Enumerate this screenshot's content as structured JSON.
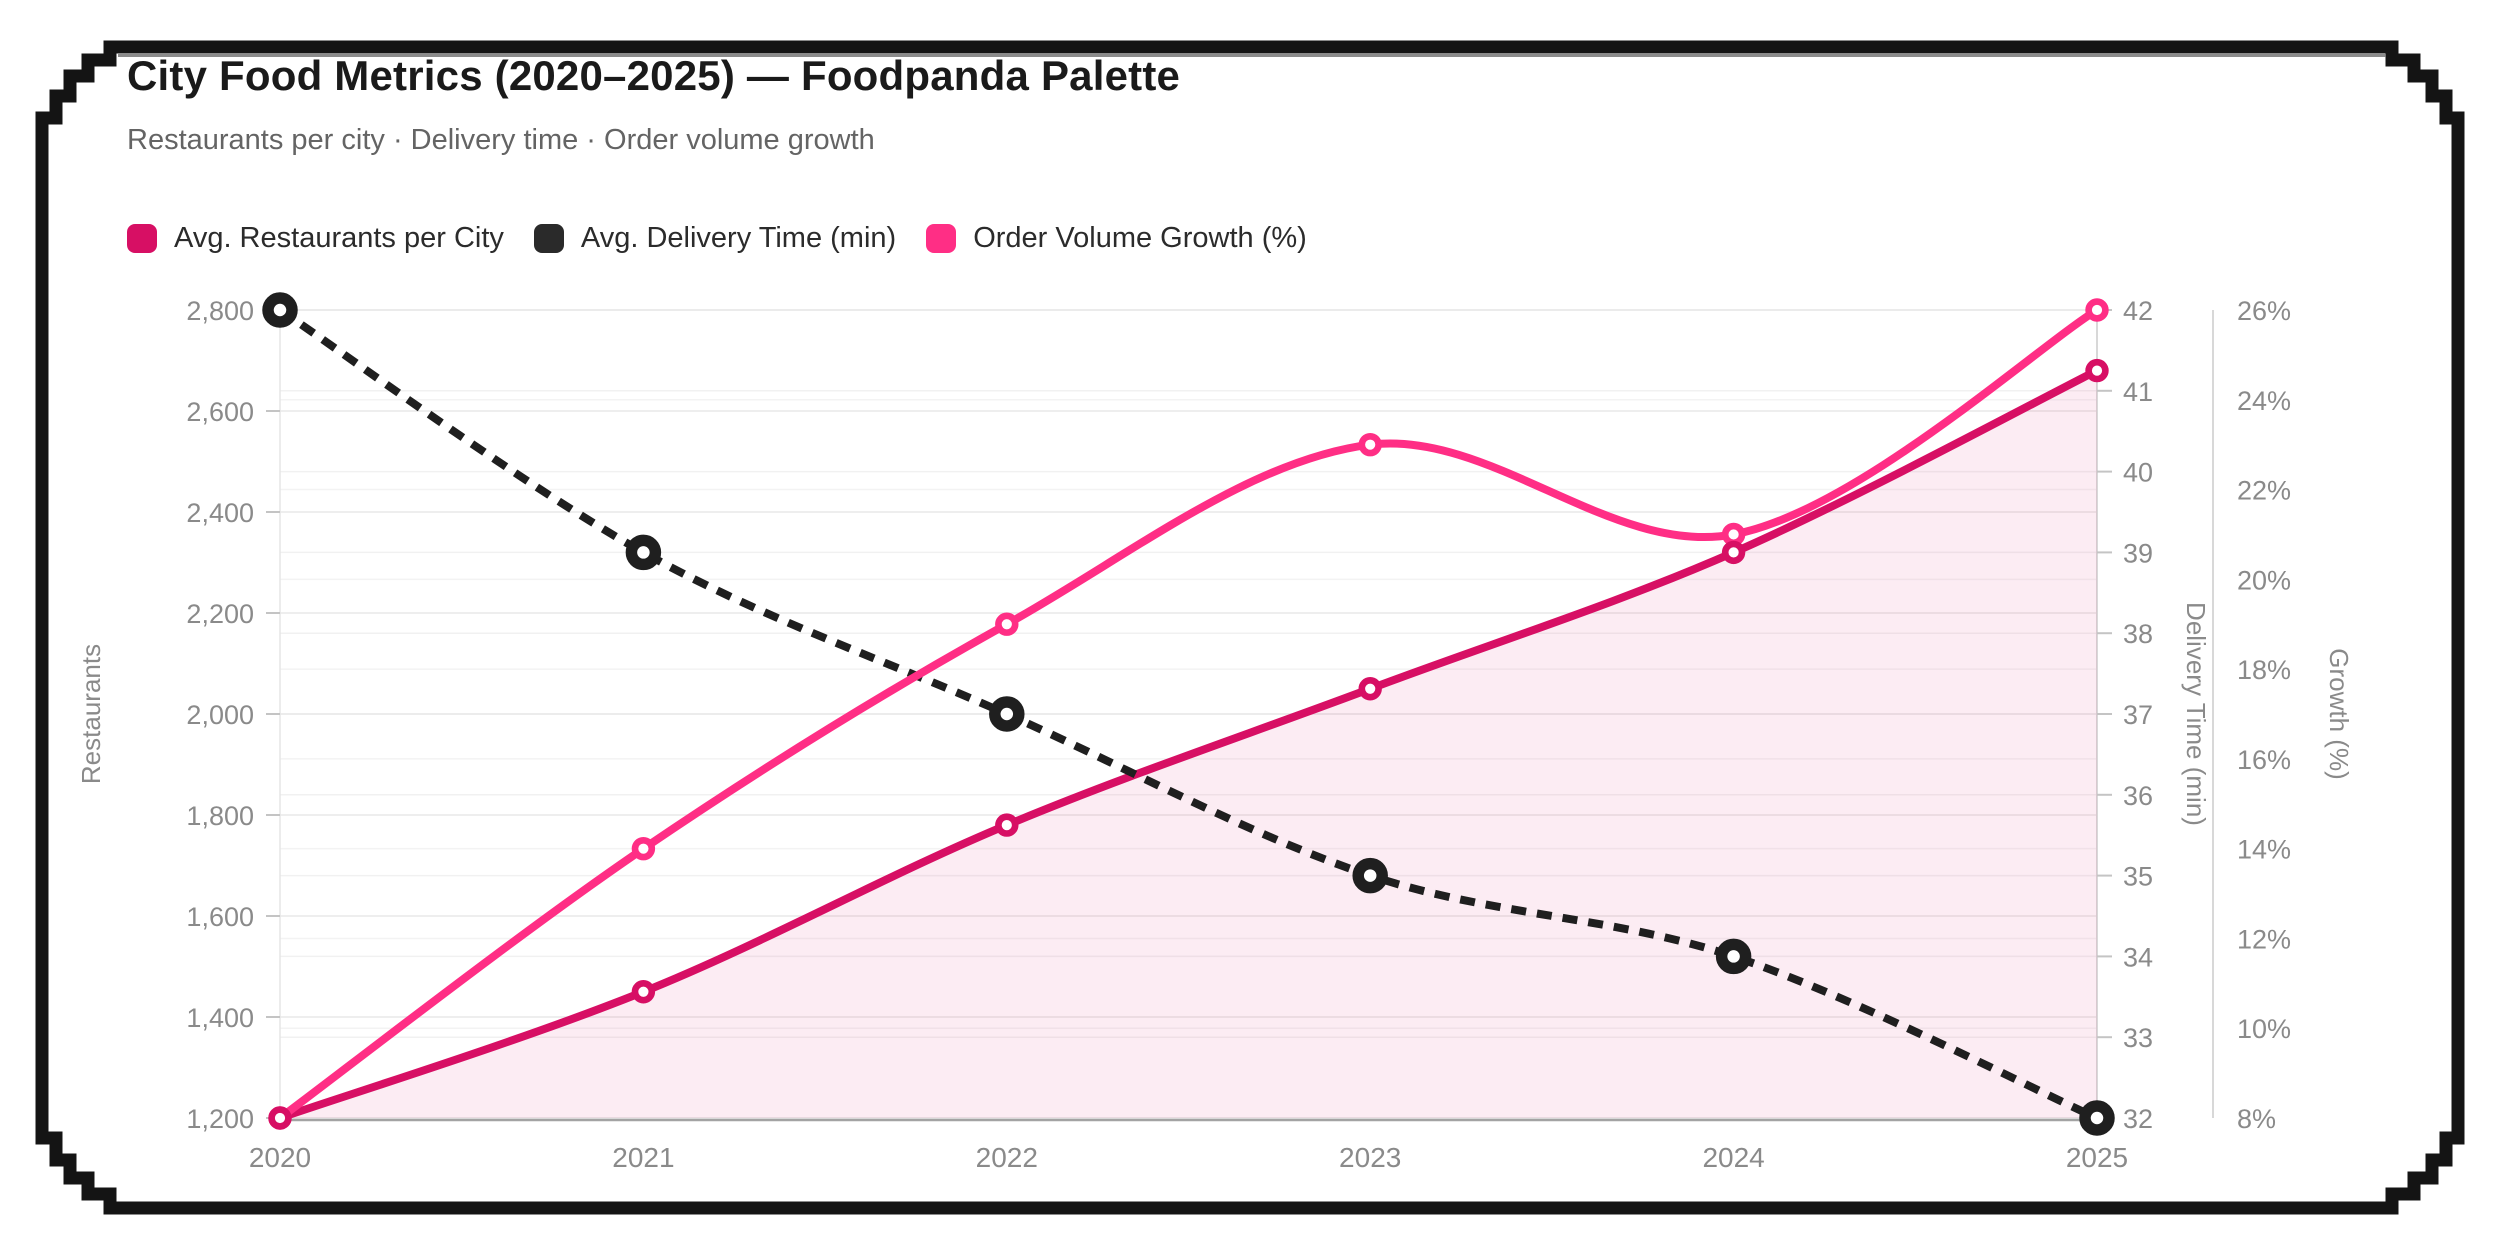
{
  "title": "City Food Metrics (2020–2025) — Foodpanda Palette",
  "subtitle": "Restaurants per city · Delivery time · Order volume growth",
  "legend": [
    {
      "label": "Avg. Restaurants per City",
      "color": "#d70f64"
    },
    {
      "label": "Avg. Delivery Time (min)",
      "color": "#2a2a2a"
    },
    {
      "label": "Order Volume Growth (%)",
      "color": "#ff2e85"
    }
  ],
  "colors": {
    "restaurants": "#d70f64",
    "delivery": "#1f1f1f",
    "growth": "#ff2e85",
    "area_fill": "rgba(215,15,100,0.08)",
    "grid_major": "#e8e8e8",
    "grid_minor": "#f1f1f1",
    "axis_line": "#a3a3a3",
    "side_axis_line": "#d8d8d8",
    "tick_mark": "#c4c4c4",
    "tick_label": "#8a8a8a"
  },
  "chart_data": {
    "type": "line",
    "x": [
      2020,
      2021,
      2022,
      2023,
      2024,
      2025
    ],
    "x_labels": [
      "2020",
      "2021",
      "2022",
      "2023",
      "2024",
      "2025"
    ],
    "series": [
      {
        "id": "restaurants",
        "name": "Avg. Restaurants per City",
        "axis": "restaurants",
        "values": [
          1200,
          1450,
          1780,
          2050,
          2320,
          2680
        ],
        "color": "#d70f64",
        "style": "solid",
        "area": true
      },
      {
        "id": "delivery",
        "name": "Avg. Delivery Time (min)",
        "axis": "delivery",
        "values": [
          42,
          39,
          37,
          35,
          34,
          32
        ],
        "color": "#1f1f1f",
        "style": "dashed",
        "area": false
      },
      {
        "id": "growth",
        "name": "Order Volume Growth (%)",
        "axis": "growth",
        "values": [
          8,
          14,
          19,
          23,
          21,
          26
        ],
        "color": "#ff2e85",
        "style": "solid",
        "area": false
      }
    ],
    "axes": {
      "restaurants": {
        "label": "Restaurants",
        "min": 1200,
        "max": 2800,
        "step": 200,
        "ticks": [
          "2,800",
          "2,600",
          "2,400",
          "2,200",
          "2,000",
          "1,800",
          "1,600",
          "1,400",
          "1,200"
        ]
      },
      "delivery": {
        "label": "Delivery Time (min)",
        "min": 32,
        "max": 42,
        "step": 1,
        "ticks": [
          "42",
          "41",
          "40",
          "39",
          "38",
          "37",
          "36",
          "35",
          "34",
          "33",
          "32"
        ]
      },
      "growth": {
        "label": "Growth (%)",
        "min": 8,
        "max": 26,
        "step": 2,
        "ticks": [
          "26%",
          "24%",
          "22%",
          "20%",
          "18%",
          "16%",
          "14%",
          "12%",
          "10%",
          "8%"
        ]
      }
    },
    "legend_position": "top-left",
    "grid": true,
    "smooth": true
  }
}
